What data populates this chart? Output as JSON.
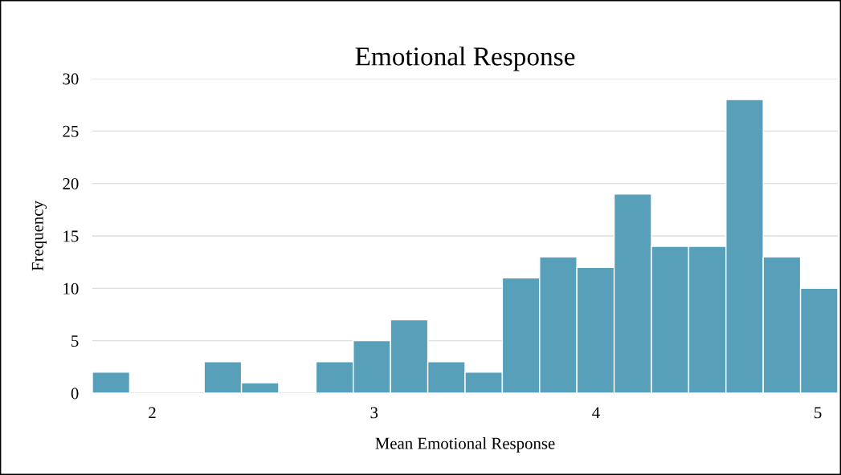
{
  "chart_data": {
    "type": "histogram",
    "title": "Emotional Response",
    "xlabel": "Mean Emotional Response",
    "ylabel": "Frequency",
    "bins": [
      1.73,
      1.898,
      2.066,
      2.234,
      2.402,
      2.57,
      2.738,
      2.906,
      3.074,
      3.242,
      3.41,
      3.578,
      3.746,
      3.914,
      4.082,
      4.25,
      4.418,
      4.586,
      4.754,
      4.922,
      5.09
    ],
    "values": [
      2,
      0,
      0,
      3,
      1,
      0,
      3,
      5,
      7,
      3,
      2,
      11,
      13,
      12,
      19,
      14,
      14,
      28,
      13,
      10
    ],
    "color": "#589fba",
    "xlim": [
      1.73,
      5.09
    ],
    "xticks": [
      2,
      3,
      4,
      5
    ],
    "ylim": [
      0,
      30
    ],
    "yticks": [
      0,
      5,
      10,
      15,
      20,
      25,
      30
    ],
    "grid": "y"
  }
}
